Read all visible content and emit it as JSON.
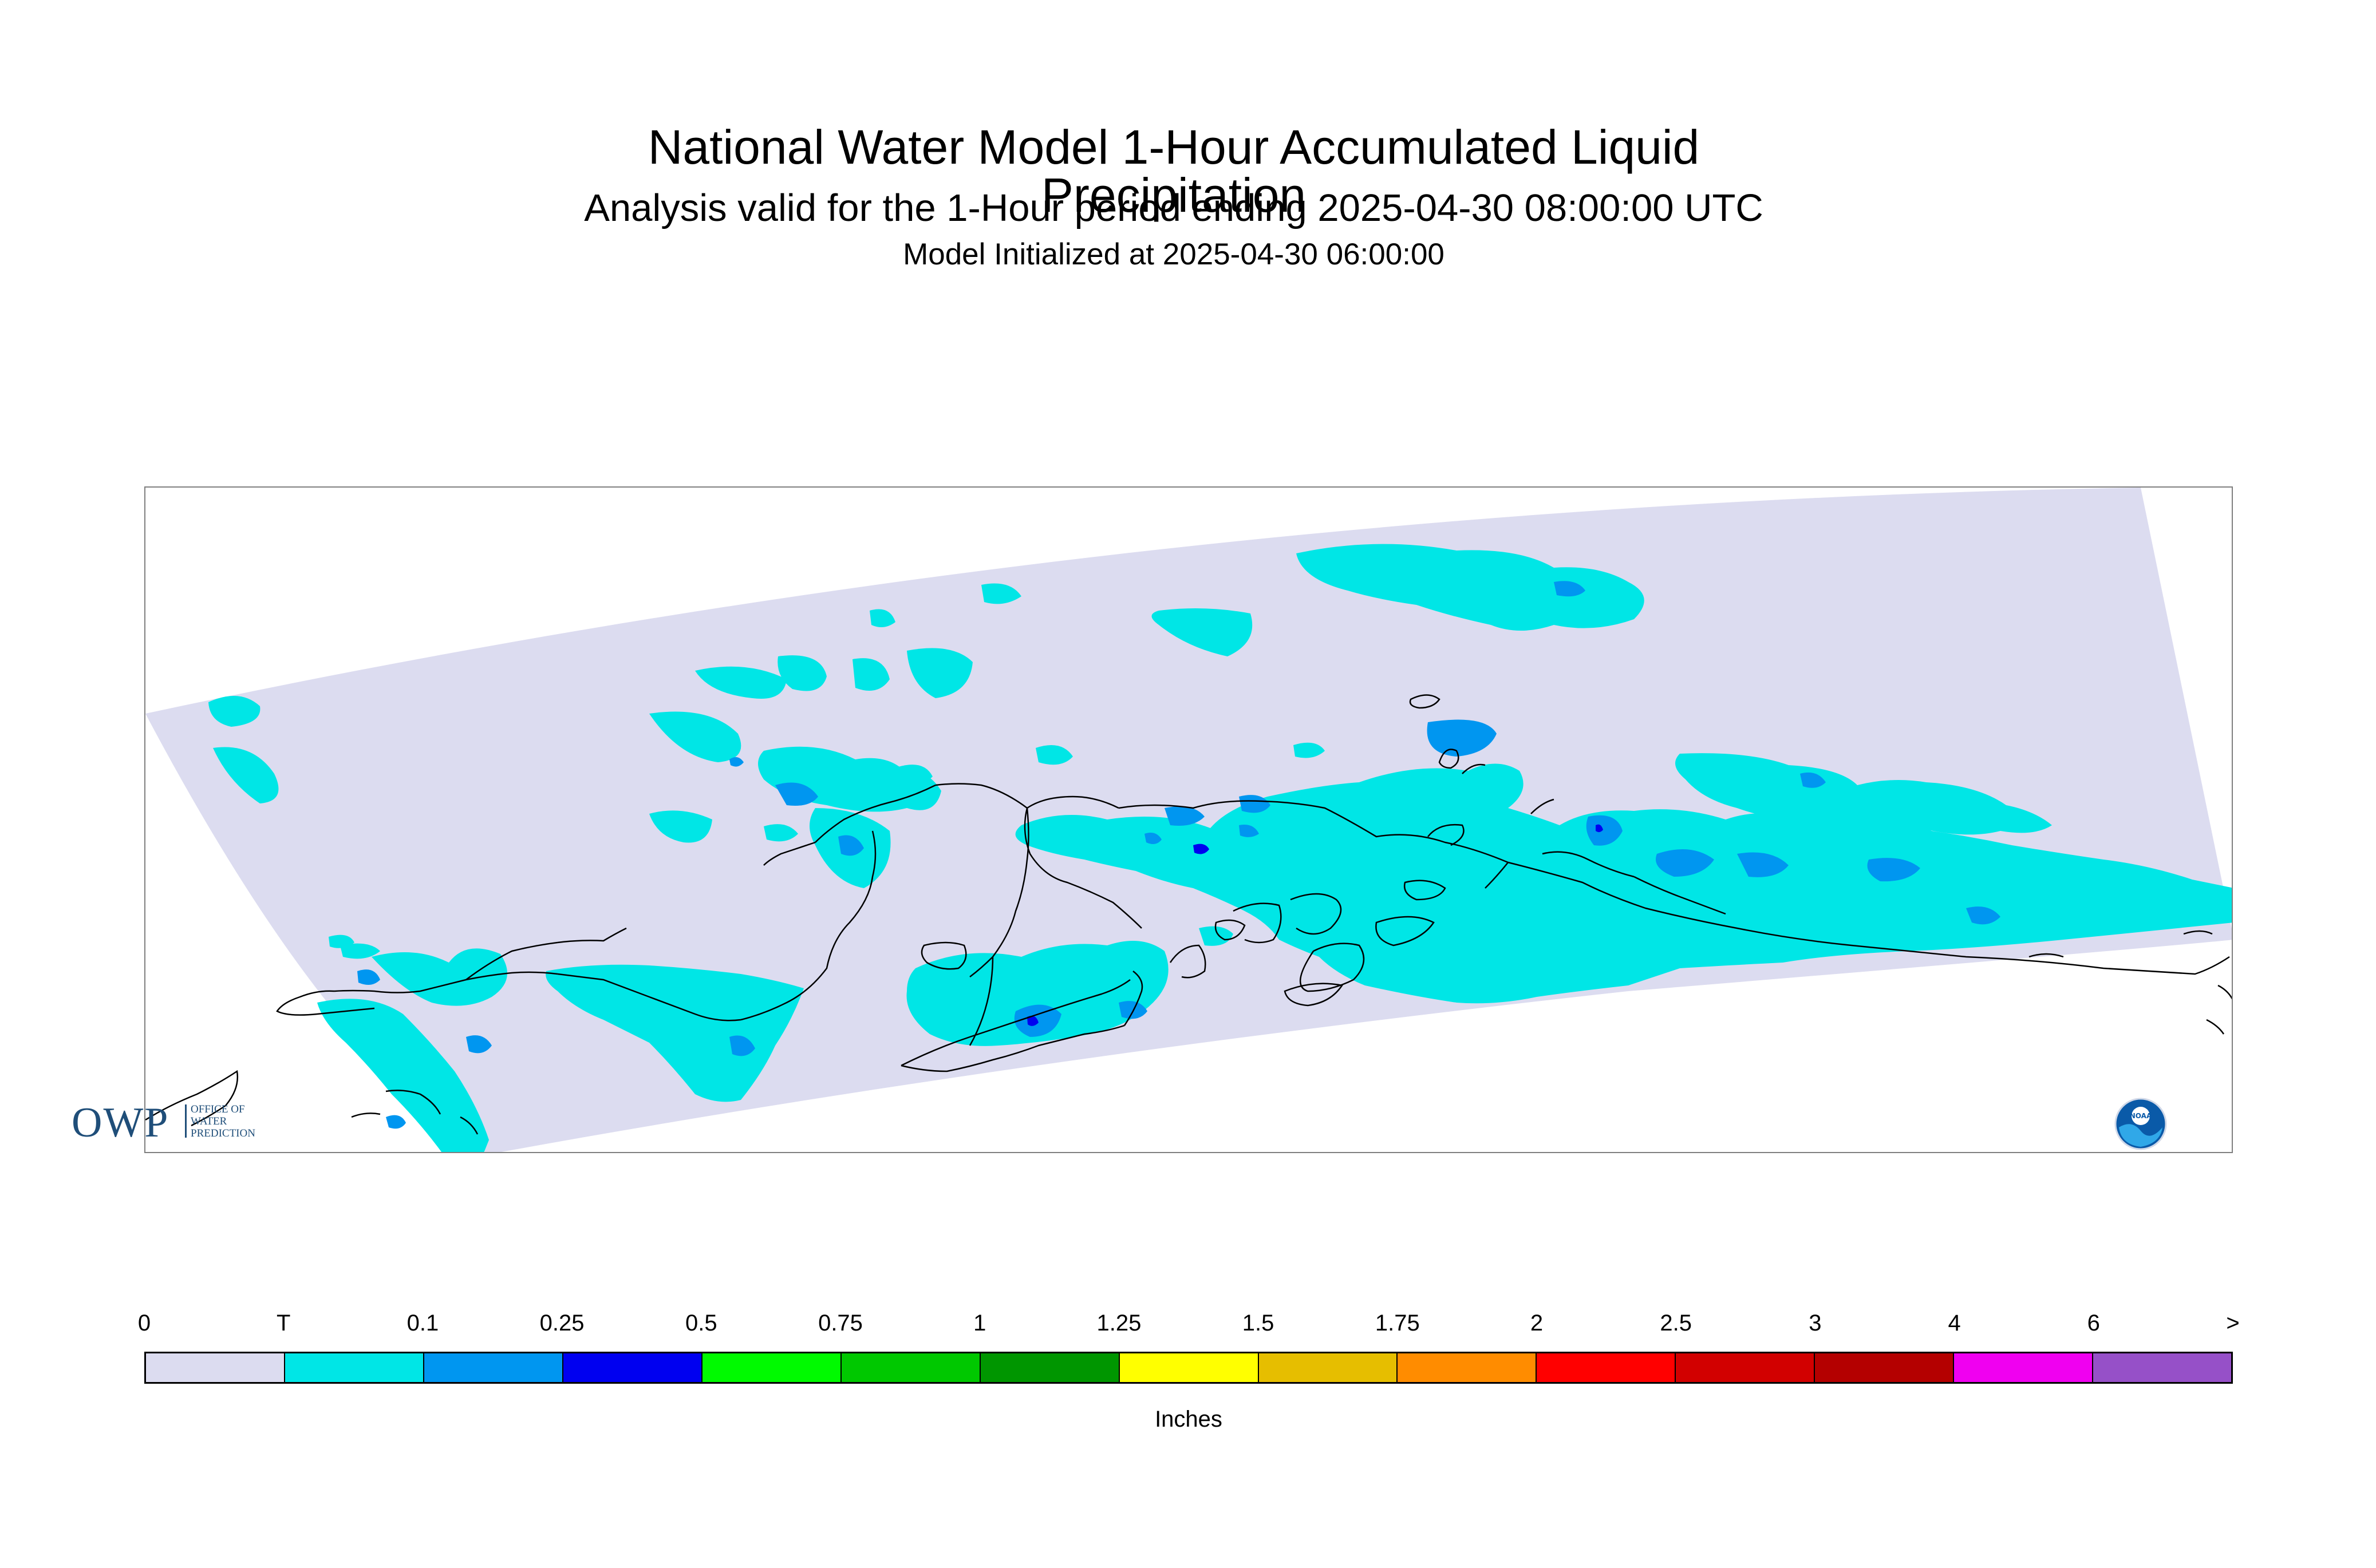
{
  "header": {
    "title": "National Water Model 1-Hour Accumulated Liquid Precipitation",
    "subtitle": "Analysis valid for the 1-Hour period ending 2025-04-30 08:00:00 UTC",
    "init": "Model Initialized at 2025-04-30 06:00:00"
  },
  "logos": {
    "owp_short": "OWP",
    "owp_line1": "OFFICE OF",
    "owp_line2": "WATER",
    "owp_line3": "PREDICTION",
    "noaa": "NOAA"
  },
  "legend": {
    "units": "Inches",
    "tick_labels": [
      "0",
      "T",
      "0.1",
      "0.25",
      "0.5",
      "0.75",
      "1",
      "1.25",
      "1.5",
      "1.75",
      "2",
      "2.5",
      "3",
      "4",
      "6",
      ">"
    ],
    "colors": [
      "#dcdcf0",
      "#00e6e6",
      "#0096f0",
      "#0000f0",
      "#00fa00",
      "#00c800",
      "#009600",
      "#ffff00",
      "#e6be00",
      "#ff8c00",
      "#ff0000",
      "#d20000",
      "#b40000",
      "#f000f0",
      "#9650c8"
    ]
  },
  "map": {
    "domain_color": "#dcdcf0",
    "trace_color": "#00e6e6",
    "light_color": "#0096f0",
    "moderate_color": "#0000f0",
    "coast_color": "#000000"
  }
}
